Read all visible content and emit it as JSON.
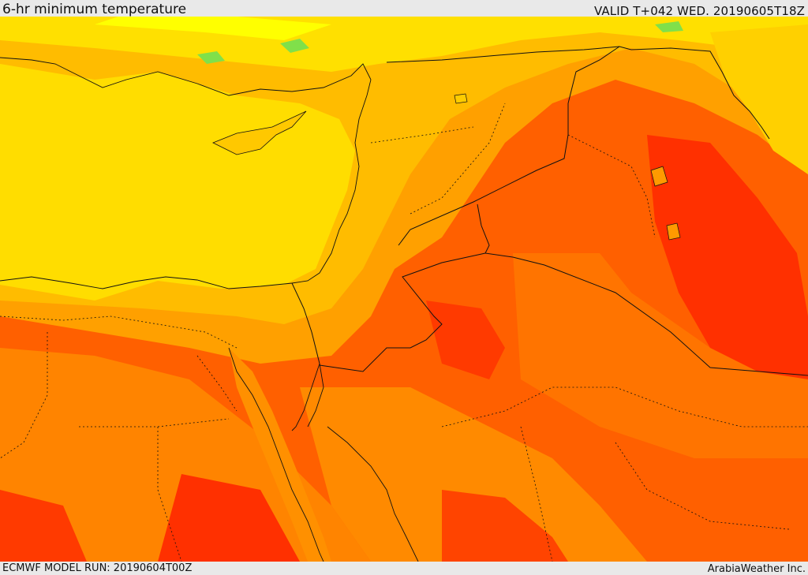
{
  "header": {
    "title": "6-hr minimum temperature",
    "valid": "VALID T+042 WED. 20190605T18Z"
  },
  "footer": {
    "model_run": "ECMWF MODEL RUN: 20190604T00Z",
    "credit": "ArabiaWeather Inc."
  },
  "palette": {
    "green": "#7fe04a",
    "yellow_light": "#ffff00",
    "yellow": "#ffde00",
    "amber": "#ffbb00",
    "orange": "#ff9a00",
    "orange_dark": "#ff7a00",
    "red_orange": "#ff5500",
    "red": "#ff2a00"
  }
}
